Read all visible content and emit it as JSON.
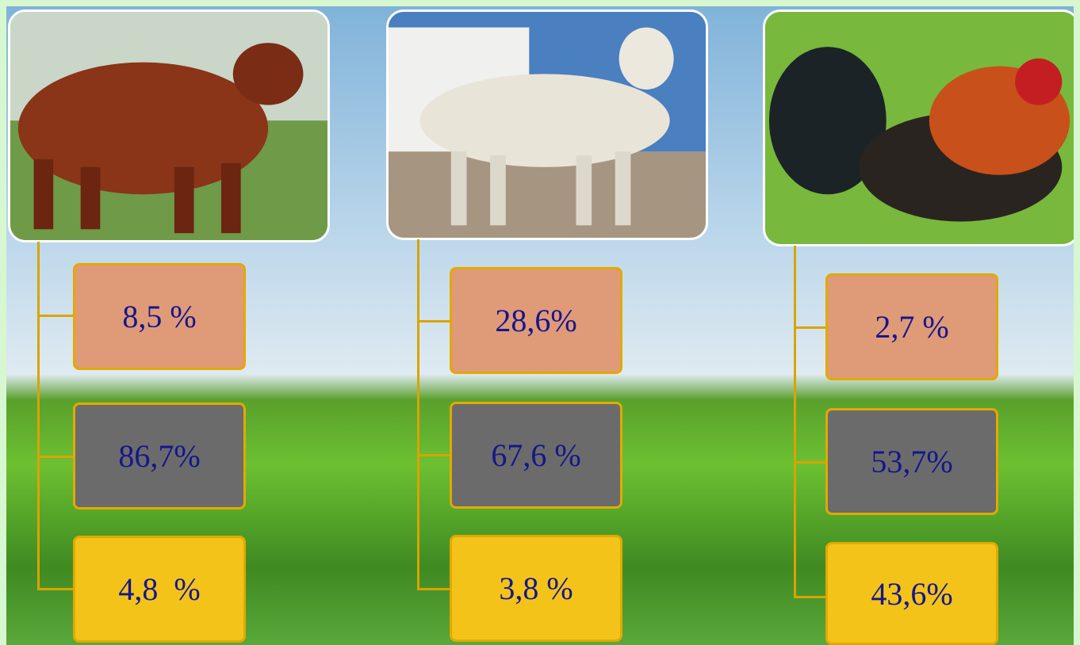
{
  "columns": [
    {
      "boxes": [
        {
          "label": "8,5 %"
        },
        {
          "label": "86,7%"
        },
        {
          "label": "4,8  %"
        }
      ]
    },
    {
      "boxes": [
        {
          "label": "28,6%"
        },
        {
          "label": "67,6 %"
        },
        {
          "label": "3,8 %"
        }
      ]
    },
    {
      "boxes": [
        {
          "label": "2,7 %"
        },
        {
          "label": "53,7%"
        },
        {
          "label": "43,6%"
        }
      ]
    }
  ]
}
